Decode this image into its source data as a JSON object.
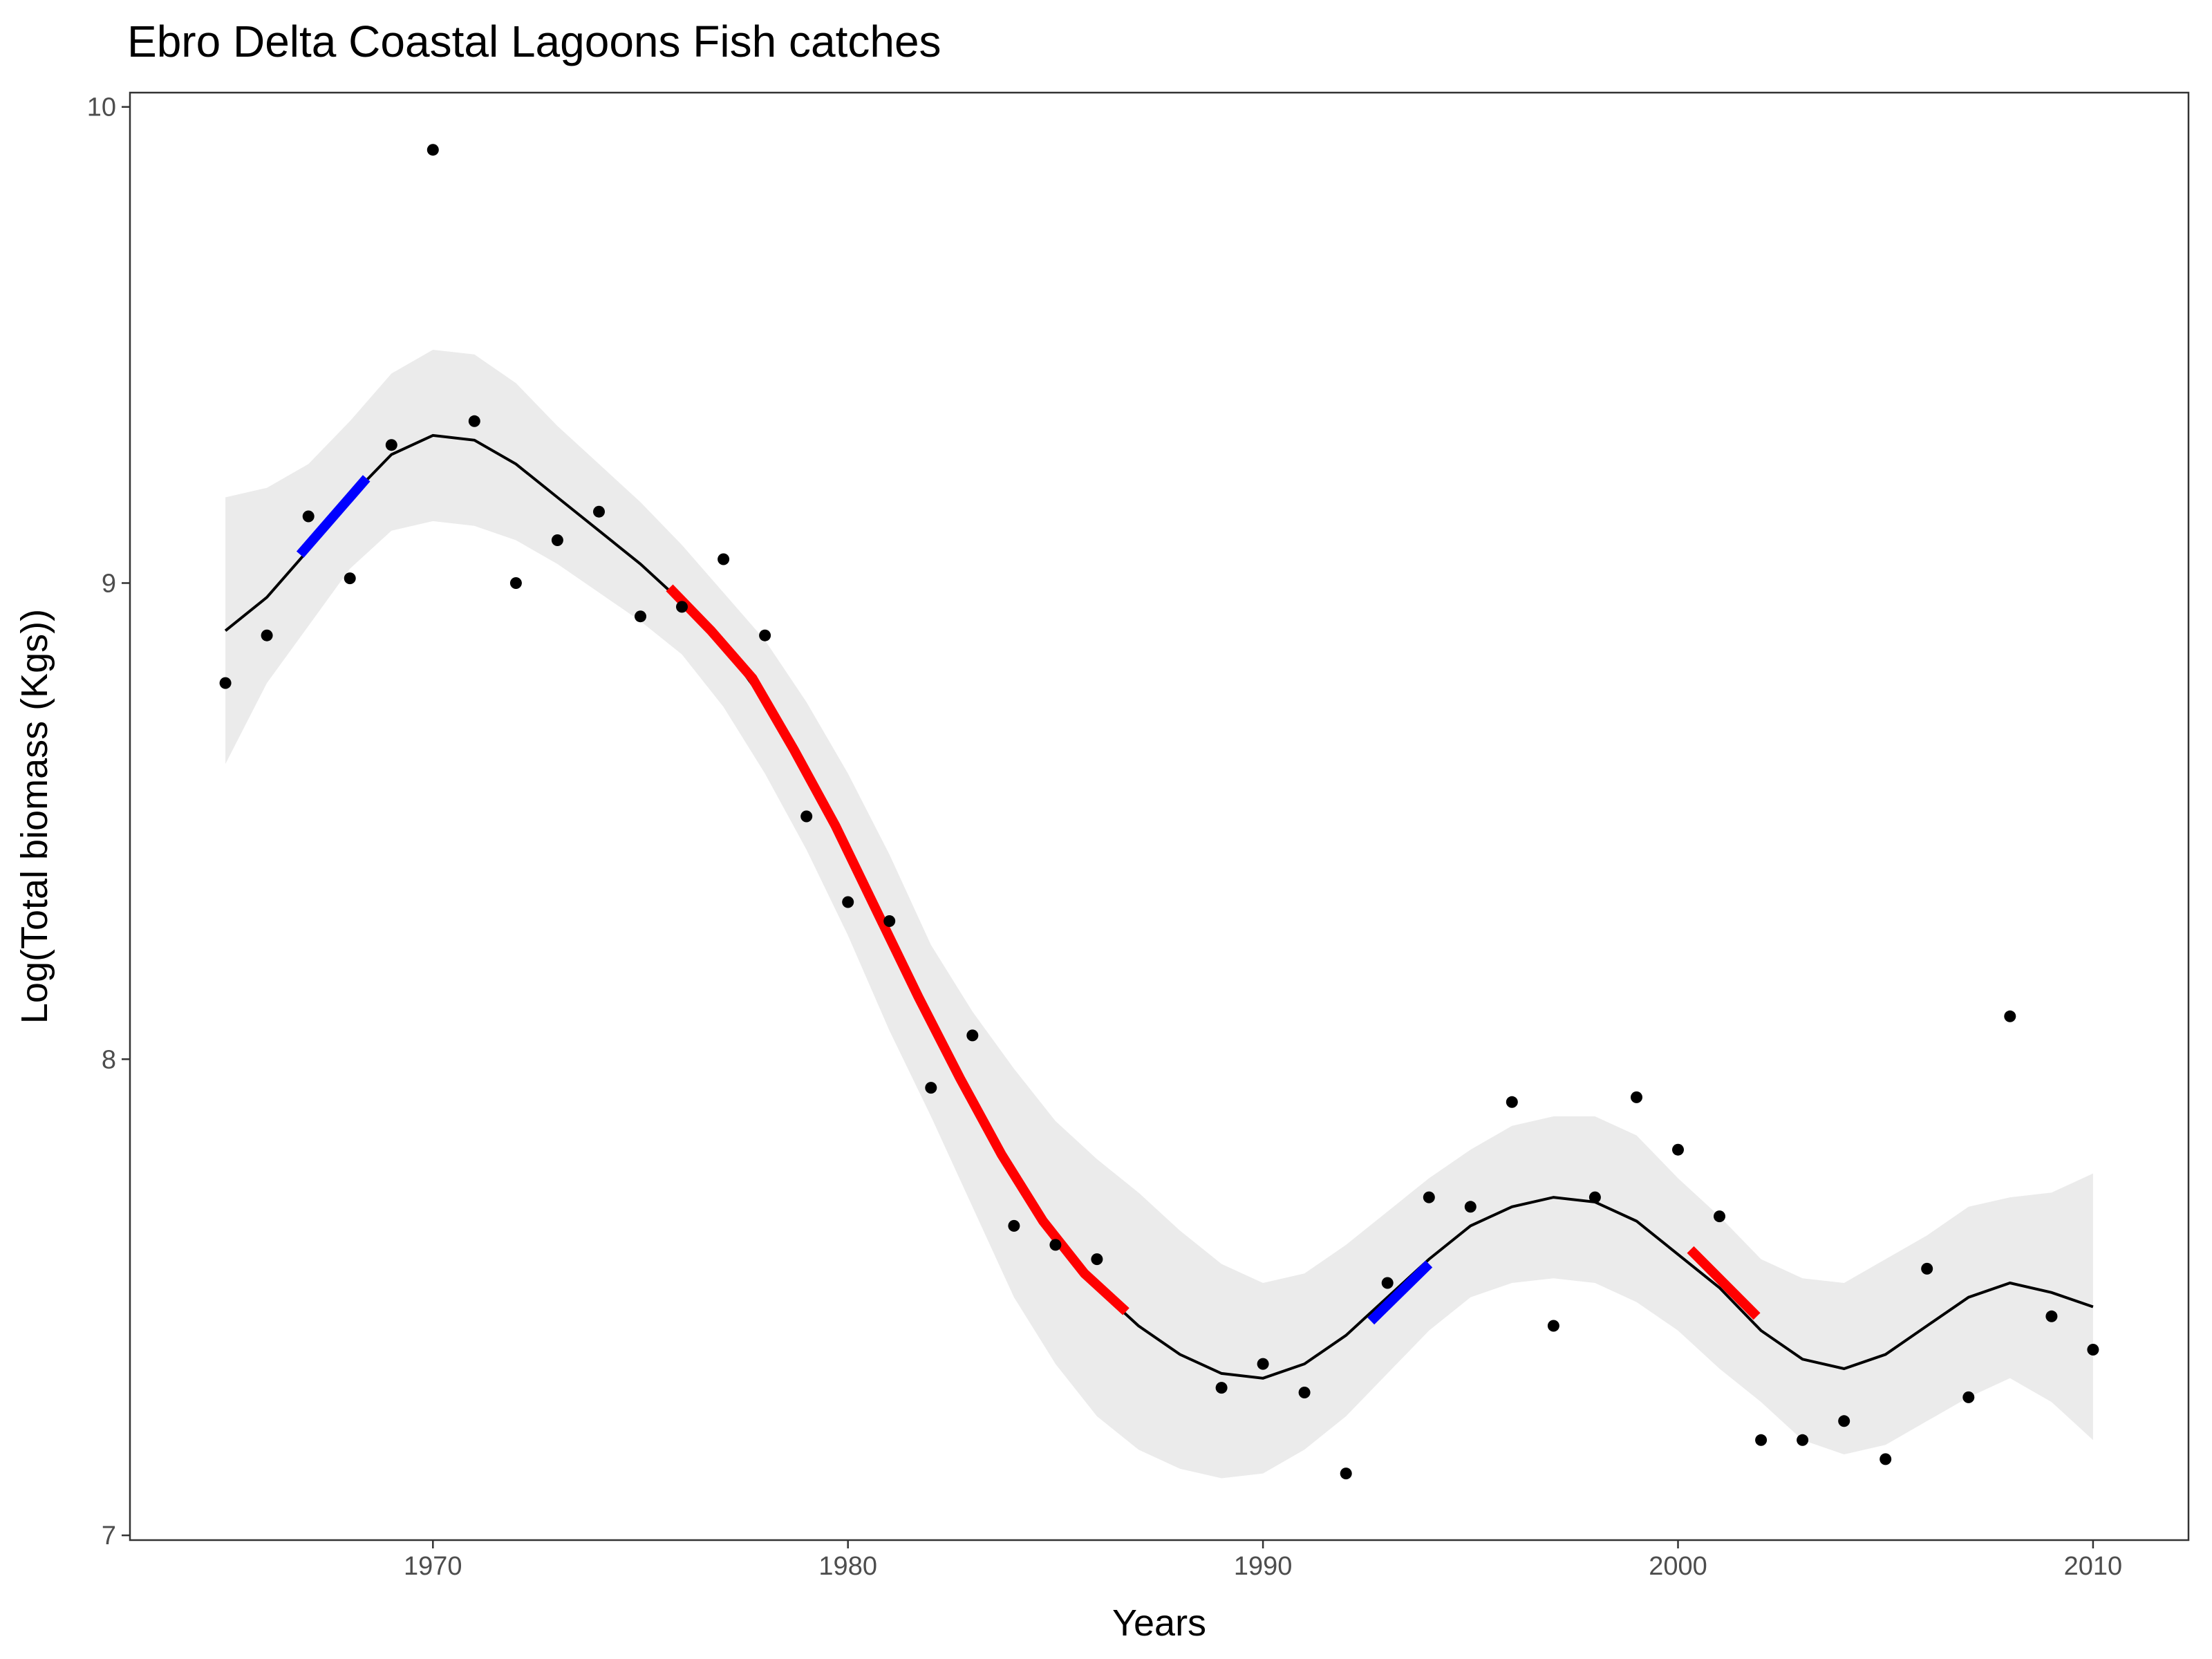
{
  "chart_data": {
    "type": "scatter",
    "title": "Ebro Delta Coastal Lagoons Fish catches",
    "xlabel": "Years",
    "ylabel": "Log(Total biomass (Kgs))",
    "xlim": [
      1962.7,
      2012.3
    ],
    "ylim": [
      6.99,
      10.03
    ],
    "x_ticks": [
      1970,
      1980,
      1990,
      2000,
      2010
    ],
    "y_ticks": [
      7,
      8,
      9,
      10
    ],
    "grid": false,
    "colors": {
      "points": "#000000",
      "smooth": "#000000",
      "ribbon": "#ebebeb",
      "increase": "#0000ff",
      "decrease": "#ff0000"
    },
    "points": {
      "x": [
        1965,
        1966,
        1967,
        1968,
        1969,
        1970,
        1971,
        1972,
        1973,
        1974,
        1975,
        1976,
        1977,
        1978,
        1979,
        1980,
        1981,
        1982,
        1983,
        1984,
        1985,
        1986,
        1989,
        1990,
        1991,
        1992,
        1993,
        1994,
        1995,
        1996,
        1997,
        1998,
        1999,
        2000,
        2001,
        2002,
        2003,
        2004,
        2005,
        2006,
        2007,
        2008,
        2009,
        2010
      ],
      "y": [
        8.79,
        8.89,
        9.14,
        9.01,
        9.29,
        9.91,
        9.34,
        9.0,
        9.09,
        9.15,
        8.93,
        8.95,
        9.05,
        8.89,
        8.51,
        8.33,
        8.29,
        7.94,
        8.05,
        7.65,
        7.61,
        7.58,
        7.31,
        7.36,
        7.3,
        7.13,
        7.53,
        7.71,
        7.69,
        7.91,
        7.44,
        7.71,
        7.92,
        7.81,
        7.67,
        7.2,
        7.2,
        7.24,
        7.16,
        7.56,
        7.29,
        8.09,
        7.46,
        7.39
      ]
    },
    "smooth": {
      "x": [
        1965,
        1966,
        1967,
        1968,
        1969,
        1970,
        1971,
        1972,
        1973,
        1974,
        1975,
        1976,
        1977,
        1978,
        1979,
        1980,
        1981,
        1982,
        1983,
        1984,
        1985,
        1986,
        1987,
        1988,
        1989,
        1990,
        1991,
        1992,
        1993,
        1994,
        1995,
        1996,
        1997,
        1998,
        1999,
        2000,
        2001,
        2002,
        2003,
        2004,
        2005,
        2006,
        2007,
        2008,
        2009,
        2010
      ],
      "y": [
        8.9,
        8.97,
        9.07,
        9.18,
        9.27,
        9.31,
        9.3,
        9.25,
        9.18,
        9.11,
        9.04,
        8.96,
        8.87,
        8.75,
        8.6,
        8.44,
        8.26,
        8.08,
        7.91,
        7.76,
        7.62,
        7.52,
        7.44,
        7.38,
        7.34,
        7.33,
        7.36,
        7.42,
        7.5,
        7.58,
        7.65,
        7.69,
        7.71,
        7.7,
        7.66,
        7.59,
        7.52,
        7.43,
        7.37,
        7.35,
        7.38,
        7.44,
        7.5,
        7.53,
        7.51,
        7.48
      ],
      "lower": [
        8.62,
        8.79,
        8.91,
        9.03,
        9.11,
        9.13,
        9.12,
        9.09,
        9.04,
        8.98,
        8.92,
        8.85,
        8.74,
        8.6,
        8.44,
        8.26,
        8.06,
        7.88,
        7.69,
        7.5,
        7.36,
        7.25,
        7.18,
        7.14,
        7.12,
        7.13,
        7.18,
        7.25,
        7.34,
        7.43,
        7.5,
        7.53,
        7.54,
        7.53,
        7.49,
        7.43,
        7.35,
        7.28,
        7.2,
        7.17,
        7.19,
        7.24,
        7.29,
        7.33,
        7.28,
        7.2
      ],
      "upper": [
        9.18,
        9.2,
        9.25,
        9.34,
        9.44,
        9.49,
        9.48,
        9.42,
        9.33,
        9.25,
        9.17,
        9.08,
        8.98,
        8.88,
        8.75,
        8.6,
        8.43,
        8.24,
        8.1,
        7.98,
        7.87,
        7.79,
        7.72,
        7.64,
        7.57,
        7.53,
        7.55,
        7.61,
        7.68,
        7.75,
        7.81,
        7.86,
        7.88,
        7.88,
        7.84,
        7.75,
        7.67,
        7.58,
        7.54,
        7.53,
        7.58,
        7.63,
        7.69,
        7.71,
        7.72,
        7.76
      ]
    },
    "trend_segments": [
      {
        "direction": "increase",
        "x": [
          1966.8,
          1968.4
        ],
        "y": [
          9.06,
          9.22
        ]
      },
      {
        "direction": "decrease",
        "x": [
          1975.7,
          1976.7,
          1977.7,
          1978.7,
          1979.7,
          1980.7,
          1981.7,
          1982.7,
          1983.7,
          1984.7,
          1985.7,
          1986.7
        ],
        "y": [
          8.99,
          8.9,
          8.8,
          8.65,
          8.49,
          8.31,
          8.13,
          7.96,
          7.8,
          7.66,
          7.55,
          7.47
        ]
      },
      {
        "direction": "increase",
        "x": [
          1992.6,
          1994.0
        ],
        "y": [
          7.45,
          7.57
        ]
      },
      {
        "direction": "decrease",
        "x": [
          2000.3,
          2001.9
        ],
        "y": [
          7.6,
          7.46
        ]
      }
    ]
  }
}
